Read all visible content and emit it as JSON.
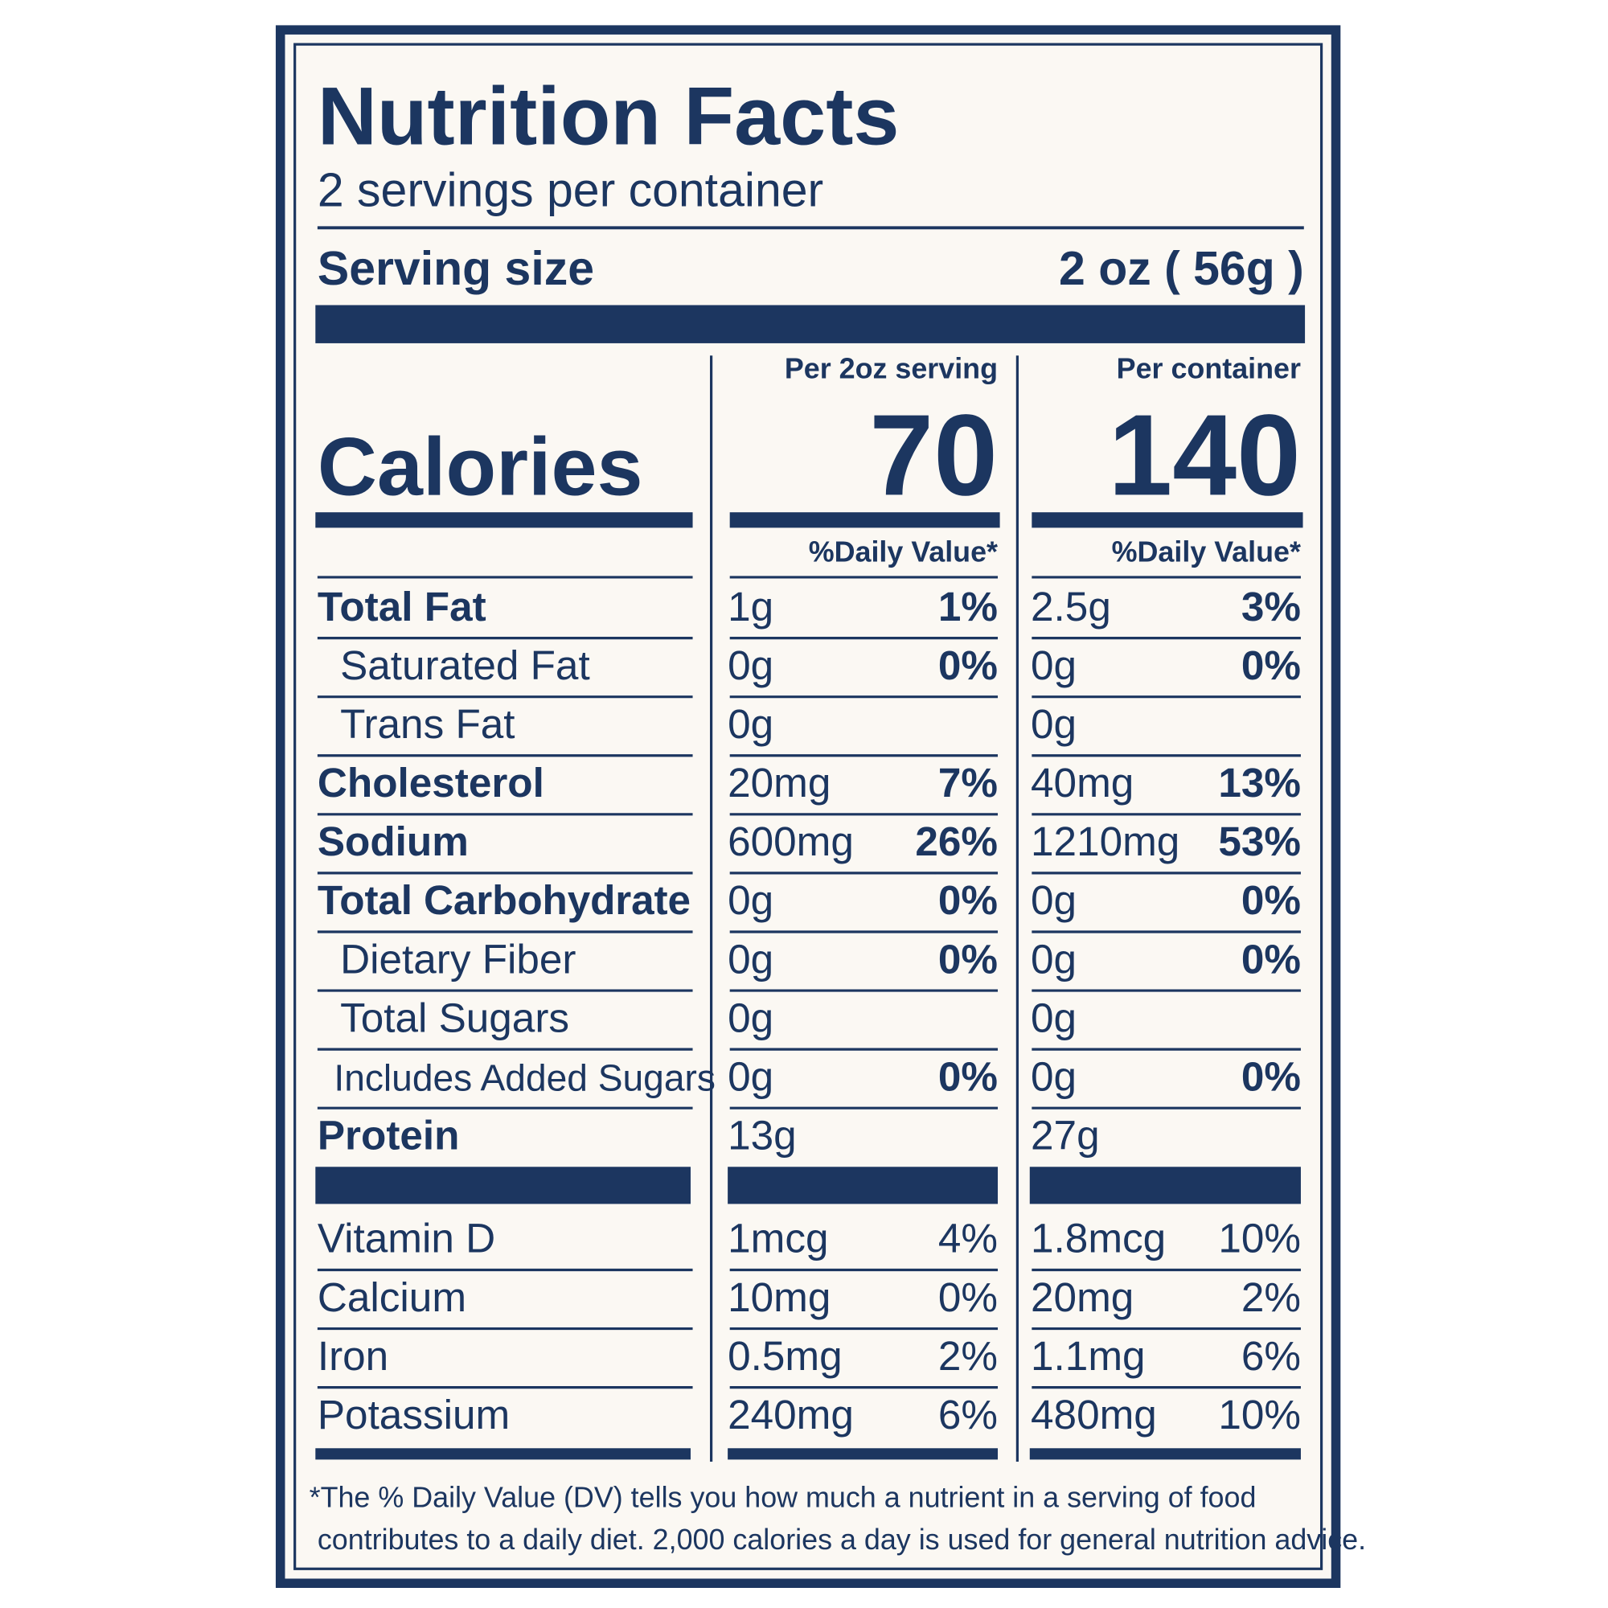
{
  "header": {
    "title": "Nutrition Facts",
    "servings": "2 servings per container",
    "serving_size_label": "Serving size",
    "serving_size_value": "2 oz ( 56g )"
  },
  "columns": [
    {
      "heading": "Per 2oz serving",
      "calories": "70",
      "dv_heading": "%Daily Value*"
    },
    {
      "heading": "Per container",
      "calories": "140",
      "dv_heading": "%Daily Value*"
    }
  ],
  "calories_label": "Calories",
  "nutrients": [
    {
      "name": "Total Fat",
      "values": [
        [
          "1g",
          "1%"
        ],
        [
          "2.5g",
          "3%"
        ]
      ]
    },
    {
      "name": "Saturated Fat",
      "values": [
        [
          "0g",
          "0%"
        ],
        [
          "0g",
          "0%"
        ]
      ]
    },
    {
      "name": "Trans Fat",
      "values": [
        [
          "0g"
        ],
        [
          "0g"
        ]
      ]
    },
    {
      "name": "Cholesterol",
      "values": [
        [
          "20mg",
          "7%"
        ],
        [
          "40mg",
          "13%"
        ]
      ]
    },
    {
      "name": "Sodium",
      "values": [
        [
          "600mg",
          "26%"
        ],
        [
          "1210mg",
          "53%"
        ]
      ]
    },
    {
      "name": "Total Carbohydrate",
      "values": [
        [
          "0g",
          "0%"
        ],
        [
          "0g",
          "0%"
        ]
      ]
    },
    {
      "name": "Dietary Fiber",
      "values": [
        [
          "0g",
          "0%"
        ],
        [
          "0g",
          "0%"
        ]
      ]
    },
    {
      "name": "Total Sugars",
      "values": [
        [
          "0g"
        ],
        [
          "0g"
        ]
      ]
    },
    {
      "name": "Includes Added Sugars",
      "values": [
        [
          "0g",
          "0%"
        ],
        [
          "0g",
          "0%"
        ]
      ]
    },
    {
      "name": "Protein",
      "values": [
        [
          "13g"
        ],
        [
          "27g"
        ]
      ]
    }
  ],
  "vitamins": [
    {
      "name": "Vitamin D",
      "values": [
        [
          "1mcg",
          "4%"
        ],
        [
          "1.8mcg",
          "10%"
        ]
      ]
    },
    {
      "name": "Calcium",
      "values": [
        [
          "10mg",
          "0%"
        ],
        [
          "20mg",
          "2%"
        ]
      ]
    },
    {
      "name": "Iron",
      "values": [
        [
          "0.5mg",
          "2%"
        ],
        [
          "1.1mg",
          "6%"
        ]
      ]
    },
    {
      "name": "Potassium",
      "values": [
        [
          "240mg",
          "6%"
        ],
        [
          "480mg",
          "10%"
        ]
      ]
    }
  ],
  "footnote": [
    "*The % Daily Value (DV) tells you how much a nutrient in a serving of food",
    "contributes to a daily diet. 2,000 calories a day is used for general nutrition advice."
  ]
}
